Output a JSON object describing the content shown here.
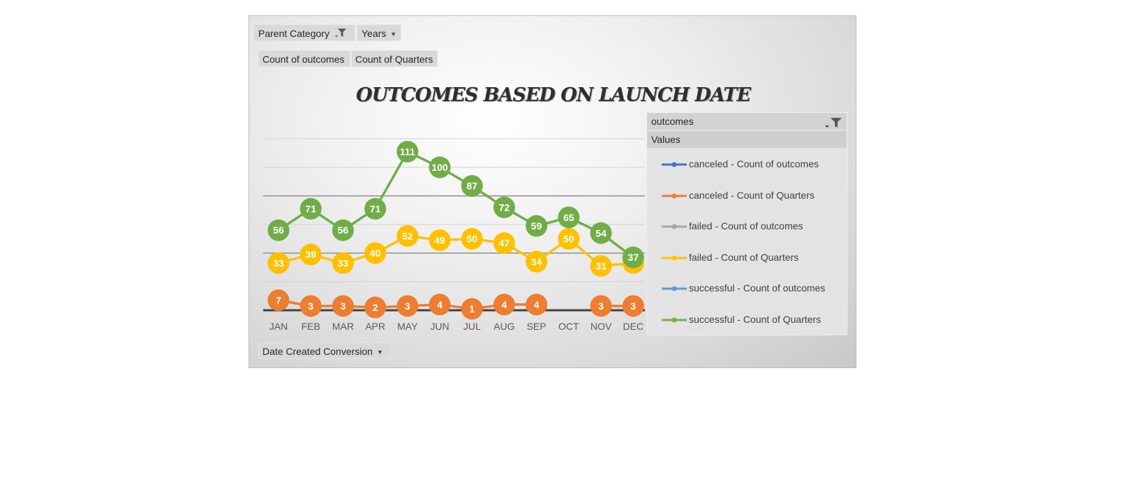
{
  "filters": {
    "parent_category": "Parent Category",
    "years": "Years",
    "value1": "Count of outcomes",
    "value2": "Count of Quarters",
    "axis_field": "Date Created Conversion"
  },
  "legend": {
    "header": "outcomes",
    "values_label": "Values",
    "items": [
      {
        "label": "canceled - Count of outcomes",
        "color": "#4472C4"
      },
      {
        "label": "canceled - Count of Quarters",
        "color": "#ED7D31"
      },
      {
        "label": "failed - Count of outcomes",
        "color": "#A5A5A5"
      },
      {
        "label": "failed - Count of Quarters",
        "color": "#FFC000"
      },
      {
        "label": "successful - Count of outcomes",
        "color": "#5B9BD5"
      },
      {
        "label": "successful - Count of Quarters",
        "color": "#70AD47"
      }
    ]
  },
  "chart_data": {
    "type": "line",
    "title": "OUTCOMES BASED ON LAUNCH DATE",
    "categories": [
      "JAN",
      "FEB",
      "MAR",
      "APR",
      "MAY",
      "JUN",
      "JUL",
      "AUG",
      "SEP",
      "OCT",
      "NOV",
      "DEC"
    ],
    "series": [
      {
        "name": "canceled - Count of Quarters",
        "color": "#ED7D31",
        "values": [
          7,
          3,
          3,
          2,
          3,
          4,
          1,
          4,
          4,
          null,
          3,
          3
        ]
      },
      {
        "name": "failed - Count of Quarters",
        "color": "#FFC000",
        "values": [
          33,
          39,
          33,
          40,
          52,
          49,
          50,
          47,
          34,
          50,
          31,
          33
        ]
      },
      {
        "name": "successful - Count of Quarters",
        "color": "#70AD47",
        "values": [
          56,
          71,
          56,
          71,
          111,
          100,
          87,
          72,
          59,
          65,
          54,
          37
        ]
      }
    ],
    "ylim": [
      0,
      120
    ],
    "grid": true,
    "legend_position": "right"
  }
}
